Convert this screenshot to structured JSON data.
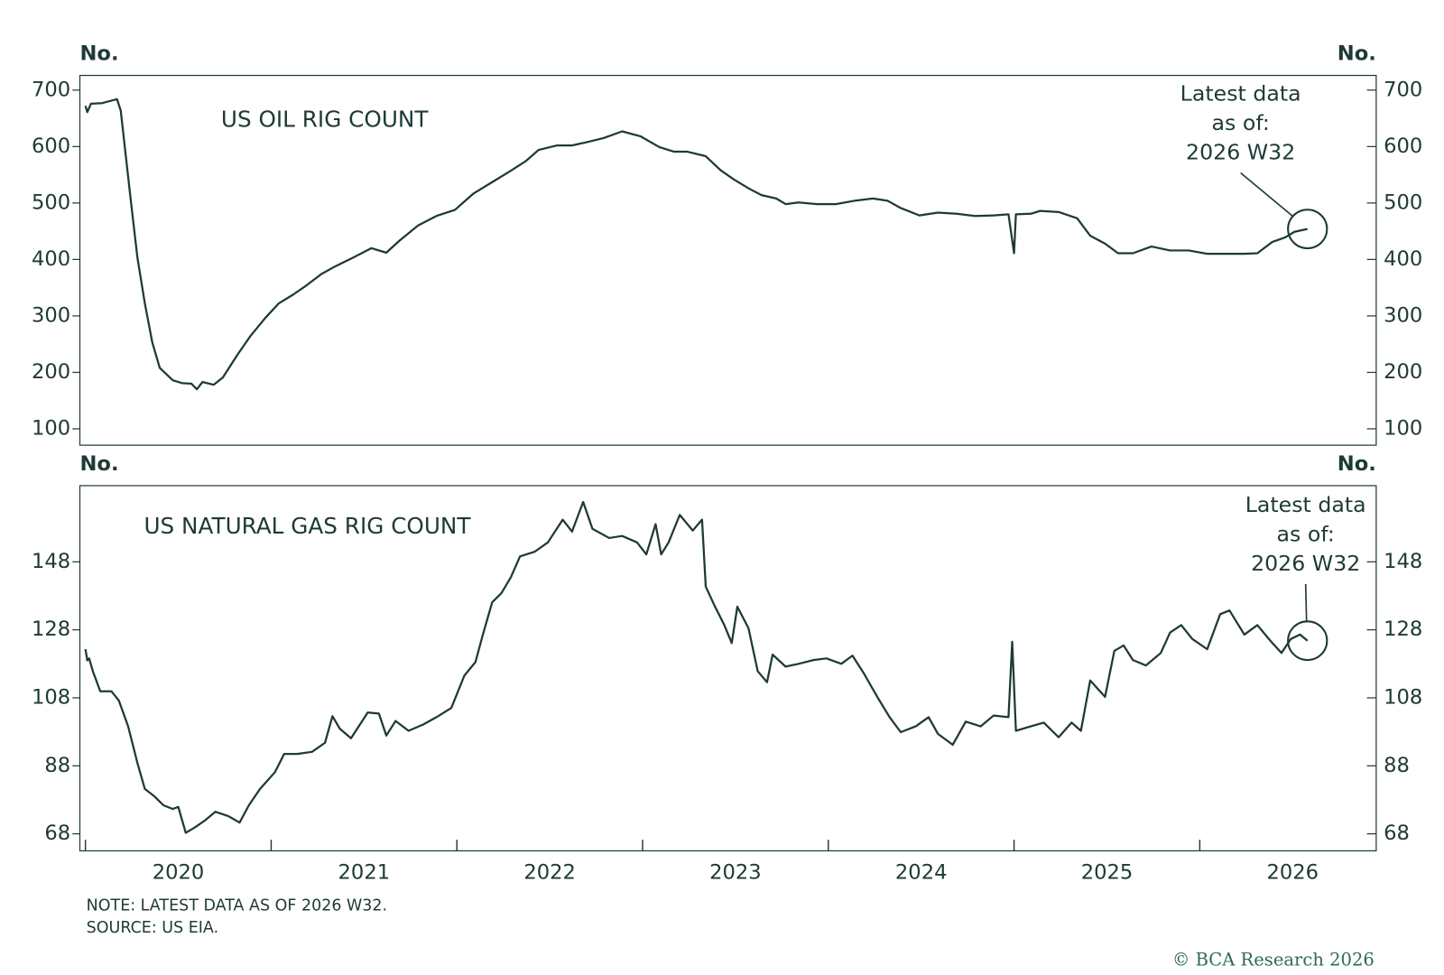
{
  "chart_data": [
    {
      "type": "line",
      "title": "US OIL RIG COUNT",
      "y_label": "No.",
      "annotation": [
        "Latest data",
        "as of:",
        "2026 W32"
      ],
      "xlim": [
        2019.97,
        2026.95
      ],
      "ylim": [
        71,
        726
      ],
      "yticks": [
        100,
        200,
        300,
        400,
        500,
        600,
        700
      ],
      "series": [
        {
          "color": "#1e3a36",
          "x": [
            2020.0,
            2020.01,
            2020.03,
            2020.09,
            2020.17,
            2020.19,
            2020.24,
            2020.28,
            2020.32,
            2020.36,
            2020.4,
            2020.47,
            2020.52,
            2020.57,
            2020.6,
            2020.63,
            2020.69,
            2020.74,
            2020.82,
            2020.89,
            2020.97,
            2021.04,
            2021.12,
            2021.19,
            2021.27,
            2021.34,
            2021.44,
            2021.54,
            2021.62,
            2021.69,
            2021.79,
            2021.89,
            2021.99,
            2022.09,
            2022.19,
            2022.29,
            2022.37,
            2022.44,
            2022.54,
            2022.62,
            2022.69,
            2022.79,
            2022.89,
            2022.99,
            2023.09,
            2023.17,
            2023.24,
            2023.34,
            2023.42,
            2023.49,
            2023.57,
            2023.64,
            2023.72,
            2023.77,
            2023.84,
            2023.94,
            2024.04,
            2024.14,
            2024.24,
            2024.32,
            2024.39,
            2024.49,
            2024.59,
            2024.69,
            2024.79,
            2024.89,
            2024.97,
            2025.0,
            2025.01,
            2025.09,
            2025.14,
            2025.24,
            2025.34,
            2025.41,
            2025.49,
            2025.56,
            2025.64,
            2025.74,
            2025.84,
            2025.94,
            2026.04,
            2026.14,
            2026.24,
            2026.31,
            2026.39,
            2026.46,
            2026.51,
            2026.58
          ],
          "values": [
            672,
            661,
            676,
            677,
            684,
            664,
            517,
            403,
            322,
            253,
            208,
            186,
            181,
            180,
            170,
            183,
            178,
            191,
            232,
            265,
            297,
            322,
            338,
            354,
            374,
            387,
            403,
            420,
            412,
            433,
            460,
            477,
            488,
            517,
            537,
            557,
            574,
            594,
            602,
            602,
            607,
            615,
            627,
            618,
            599,
            591,
            591,
            583,
            558,
            542,
            526,
            514,
            508,
            498,
            501,
            498,
            498,
            504,
            508,
            504,
            491,
            478,
            483,
            481,
            477,
            478,
            480,
            411,
            480,
            481,
            486,
            484,
            473,
            442,
            428,
            411,
            411,
            423,
            416,
            416,
            410,
            410,
            410,
            411,
            431,
            439,
            449,
            454
          ]
        }
      ]
    },
    {
      "type": "line",
      "title": "US NATURAL GAS RIG COUNT",
      "y_label": "No.",
      "annotation": [
        "Latest data",
        "as of:",
        "2026 W32"
      ],
      "xlim": [
        2019.97,
        2026.95
      ],
      "ylim": [
        63,
        170.4
      ],
      "yticks": [
        68,
        88,
        108,
        128,
        148
      ],
      "xticks": [
        2020,
        2021,
        2022,
        2023,
        2024,
        2025,
        2026
      ],
      "series": [
        {
          "color": "#1e3a36",
          "x": [
            2020.0,
            2020.01,
            2020.02,
            2020.04,
            2020.08,
            2020.14,
            2020.18,
            2020.23,
            2020.28,
            2020.32,
            2020.37,
            2020.42,
            2020.47,
            2020.5,
            2020.54,
            2020.59,
            2020.64,
            2020.7,
            2020.77,
            2020.83,
            2020.88,
            2020.94,
            2021.02,
            2021.07,
            2021.14,
            2021.22,
            2021.29,
            2021.33,
            2021.37,
            2021.43,
            2021.52,
            2021.58,
            2021.62,
            2021.67,
            2021.74,
            2021.82,
            2021.89,
            2021.97,
            2022.04,
            2022.1,
            2022.14,
            2022.19,
            2022.24,
            2022.29,
            2022.34,
            2022.42,
            2022.49,
            2022.57,
            2022.62,
            2022.68,
            2022.73,
            2022.82,
            2022.89,
            2022.97,
            2023.02,
            2023.07,
            2023.1,
            2023.14,
            2023.2,
            2023.27,
            2023.32,
            2023.34,
            2023.39,
            2023.44,
            2023.48,
            2023.51,
            2023.57,
            2023.62,
            2023.67,
            2023.7,
            2023.77,
            2023.84,
            2023.92,
            2023.99,
            2024.07,
            2024.13,
            2024.19,
            2024.27,
            2024.33,
            2024.39,
            2024.47,
            2024.54,
            2024.59,
            2024.67,
            2024.74,
            2024.82,
            2024.89,
            2024.97,
            2024.99,
            2025.01,
            2025.09,
            2025.16,
            2025.24,
            2025.31,
            2025.36,
            2025.41,
            2025.49,
            2025.54,
            2025.59,
            2025.64,
            2025.71,
            2025.79,
            2025.84,
            2025.9,
            2025.96,
            2026.04,
            2026.11,
            2026.16,
            2026.24,
            2026.31,
            2026.38,
            2026.44,
            2026.49,
            2026.54,
            2026.58
          ],
          "values": [
            122.3,
            119,
            119.6,
            115.8,
            109.9,
            109.9,
            107.2,
            99.6,
            88.8,
            81.2,
            79.1,
            76.4,
            75.3,
            75.9,
            68.3,
            69.9,
            71.8,
            74.5,
            73.2,
            71.3,
            76.4,
            81.2,
            86.1,
            91.5,
            91.5,
            92.1,
            94.8,
            102.6,
            98.9,
            96.1,
            103.7,
            103.4,
            96.9,
            101.2,
            98.3,
            100.2,
            102.3,
            105.0,
            114.5,
            118.5,
            126.6,
            136.1,
            138.8,
            143.4,
            149.6,
            151.0,
            153.7,
            160.4,
            156.9,
            165.6,
            157.7,
            155.0,
            155.6,
            153.7,
            150.2,
            159.1,
            150.2,
            153.7,
            161.8,
            157.2,
            160.4,
            140.7,
            134.8,
            129.4,
            124.1,
            134.8,
            128.5,
            115.8,
            112.6,
            120.7,
            117.2,
            118.0,
            119.1,
            119.6,
            118.0,
            120.4,
            115.3,
            107.7,
            102.3,
            97.9,
            99.6,
            102.3,
            97.4,
            94.2,
            101.0,
            99.6,
            102.8,
            102.3,
            124.5,
            98.3,
            99.6,
            100.7,
            96.4,
            100.7,
            98.3,
            113.1,
            108.3,
            121.8,
            123.4,
            119.1,
            117.5,
            121.2,
            127.2,
            129.4,
            125.3,
            122.3,
            132.6,
            133.7,
            126.6,
            129.4,
            124.8,
            121.2,
            125.3,
            126.6,
            124.8
          ]
        }
      ]
    }
  ],
  "note": "NOTE: LATEST DATA AS OF 2026 W32.",
  "source": "SOURCE: US EIA.",
  "copyright": "© BCA Research 2026"
}
